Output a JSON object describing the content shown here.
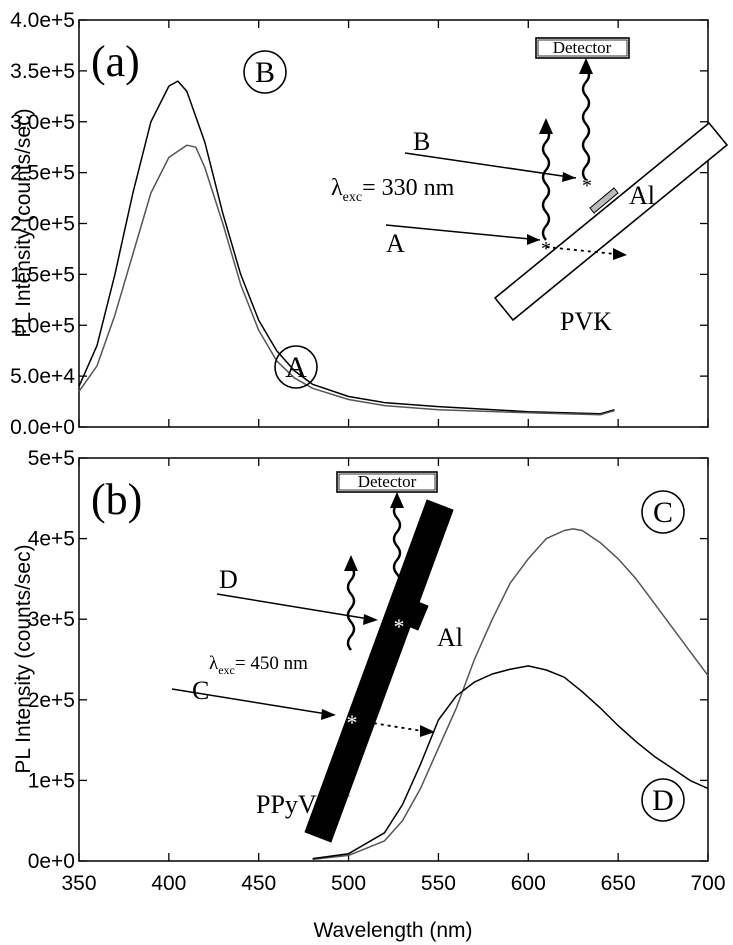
{
  "chart_data": [
    {
      "type": "line",
      "panel_label": "(a)",
      "ylabel": "PL Intensity (counts/sec)",
      "xlabel": "",
      "xlim": [
        350,
        700
      ],
      "ylim": [
        0,
        400000
      ],
      "x_ticks": [
        350,
        400,
        450,
        500,
        550,
        600,
        650,
        700
      ],
      "y_ticks": [
        0,
        50000,
        100000,
        150000,
        200000,
        250000,
        300000,
        350000,
        400000
      ],
      "y_tick_labels": [
        "0.0e+0",
        "5.0e+4",
        "1.0e+5",
        "1.5e+5",
        "2.0e+5",
        "2.5e+5",
        "3.0e+5",
        "3.5e+5",
        "4.0e+5"
      ],
      "grid": false,
      "series": [
        {
          "name": "B",
          "color": "#000000",
          "x": [
            350,
            360,
            370,
            380,
            390,
            400,
            405,
            410,
            420,
            430,
            440,
            450,
            460,
            470,
            480,
            500,
            520,
            550,
            600,
            640,
            648
          ],
          "y": [
            40000,
            80000,
            150000,
            230000,
            300000,
            335000,
            340000,
            330000,
            280000,
            210000,
            150000,
            105000,
            75000,
            55000,
            42000,
            30000,
            24000,
            20000,
            15000,
            13000,
            17000
          ]
        },
        {
          "name": "A",
          "color": "#555555",
          "x": [
            350,
            360,
            370,
            380,
            390,
            400,
            410,
            415,
            420,
            430,
            440,
            450,
            460,
            470,
            480,
            500,
            520,
            550,
            600,
            640,
            648
          ],
          "y": [
            35000,
            60000,
            110000,
            170000,
            230000,
            265000,
            277000,
            275000,
            255000,
            200000,
            140000,
            95000,
            65000,
            48000,
            38000,
            27000,
            21000,
            17000,
            14000,
            12000,
            16000
          ]
        }
      ],
      "annotations": {
        "curve_label_top": "B",
        "curve_label_bottom": "A",
        "detector": "Detector",
        "beam_b": "B",
        "beam_a": "A",
        "excitation_lambda": "λ",
        "excitation_sub": "exc",
        "excitation_value": "= 330 nm",
        "electrode": "Al",
        "film": "PVK"
      }
    },
    {
      "type": "line",
      "panel_label": "(b)",
      "ylabel": "PL Intensity (counts/sec)",
      "xlabel": "Wavelength (nm)",
      "xlim": [
        350,
        700
      ],
      "ylim": [
        0,
        500000
      ],
      "x_ticks": [
        350,
        400,
        450,
        500,
        550,
        600,
        650,
        700
      ],
      "x_tick_labels": [
        "350",
        "400",
        "450",
        "500",
        "550",
        "600",
        "650",
        "700"
      ],
      "y_ticks": [
        0,
        100000,
        200000,
        300000,
        400000,
        500000
      ],
      "y_tick_labels": [
        "0e+0",
        "1e+5",
        "2e+5",
        "3e+5",
        "4e+5",
        "5e+5"
      ],
      "grid": false,
      "series": [
        {
          "name": "C",
          "color": "#555555",
          "x": [
            480,
            500,
            520,
            530,
            540,
            550,
            560,
            570,
            580,
            590,
            600,
            610,
            620,
            625,
            630,
            640,
            650,
            660,
            670,
            680,
            690,
            700
          ],
          "y": [
            2000,
            7000,
            25000,
            50000,
            90000,
            140000,
            190000,
            250000,
            300000,
            345000,
            375000,
            400000,
            410000,
            412000,
            410000,
            395000,
            375000,
            350000,
            320000,
            290000,
            260000,
            230000
          ]
        },
        {
          "name": "D",
          "color": "#000000",
          "x": [
            480,
            500,
            520,
            530,
            540,
            550,
            560,
            570,
            580,
            590,
            600,
            610,
            620,
            630,
            640,
            650,
            660,
            670,
            680,
            690,
            700
          ],
          "y": [
            3000,
            9000,
            35000,
            70000,
            120000,
            175000,
            205000,
            222000,
            232000,
            238000,
            242000,
            237000,
            228000,
            210000,
            190000,
            168000,
            148000,
            130000,
            115000,
            100000,
            90000
          ]
        }
      ],
      "annotations": {
        "curve_label_top": "C",
        "curve_label_bottom": "D",
        "detector": "Detector",
        "beam_d": "D",
        "beam_c": "C",
        "excitation_lambda": "λ",
        "excitation_sub": "exc",
        "excitation_value": "= 450 nm",
        "electrode": "Al",
        "film": "PPyVPV"
      }
    }
  ]
}
